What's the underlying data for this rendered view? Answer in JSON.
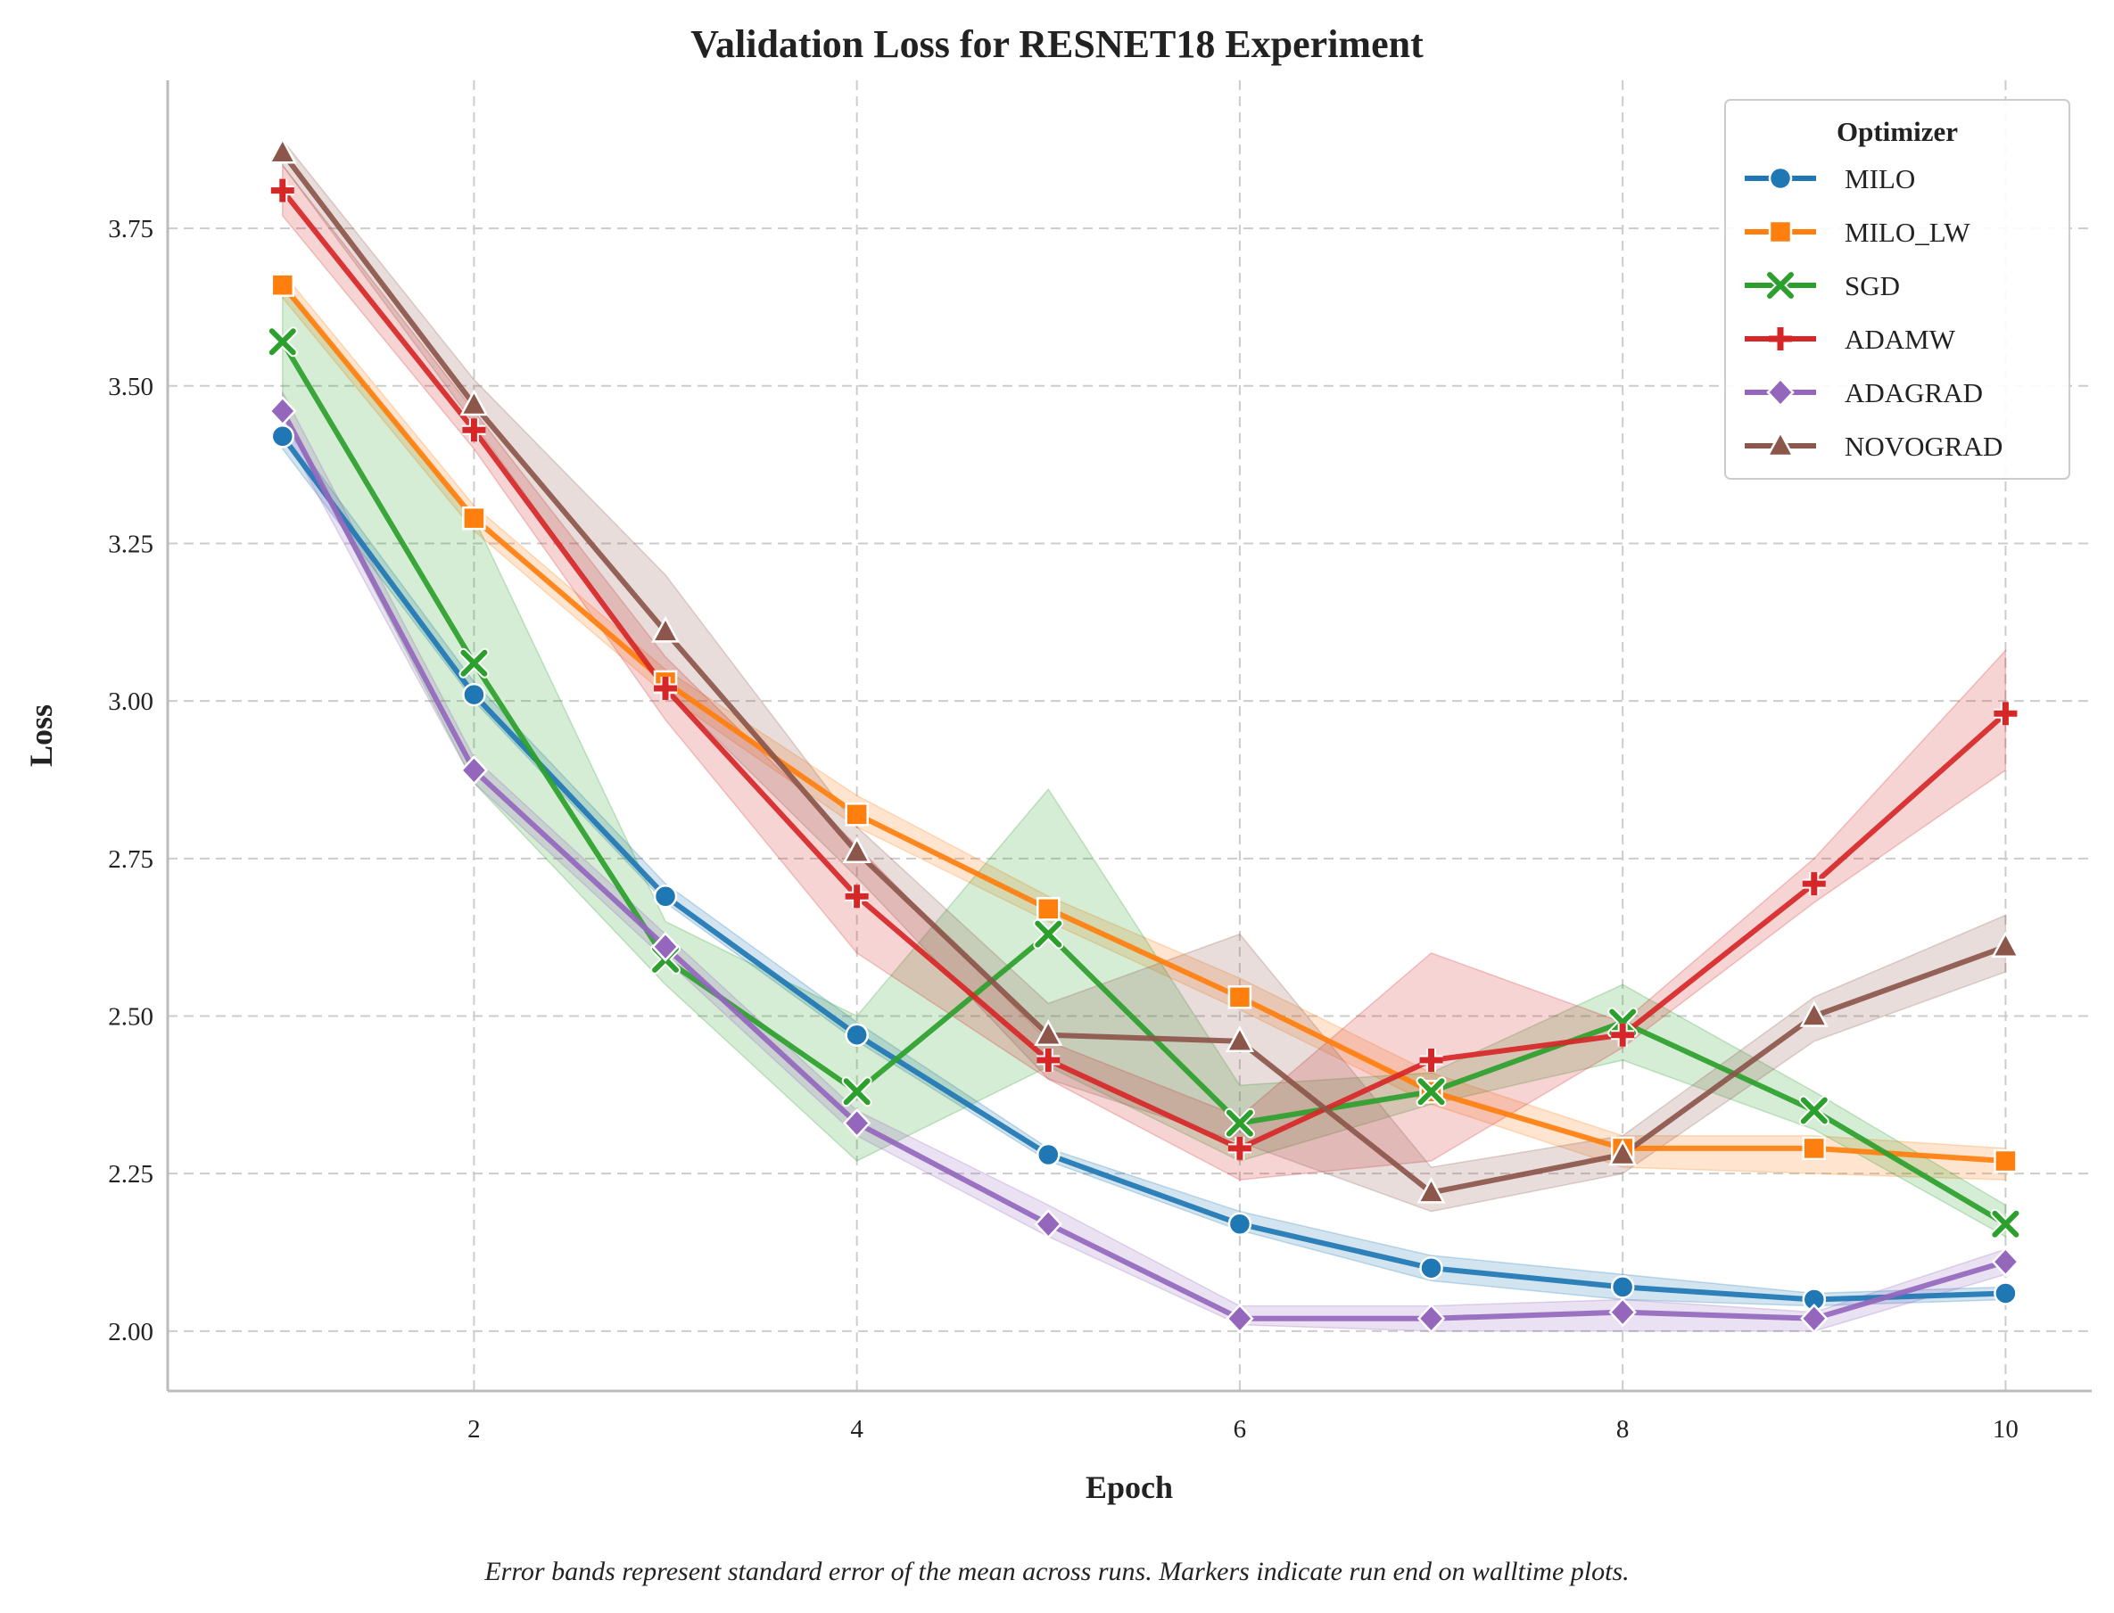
{
  "chart_data": {
    "type": "line",
    "title": "Validation Loss for RESNET18 Experiment",
    "xlabel": "Epoch",
    "ylabel": "Loss",
    "xlim": [
      0.4,
      10.45
    ],
    "ylim": [
      1.905,
      3.985
    ],
    "xticks": [
      2,
      4,
      6,
      8,
      10
    ],
    "xtick_labels": [
      "2",
      "4",
      "6",
      "8",
      "10"
    ],
    "yticks": [
      2.0,
      2.25,
      2.5,
      2.75,
      3.0,
      3.25,
      3.5,
      3.75
    ],
    "ytick_labels": [
      "2.00",
      "2.25",
      "2.50",
      "2.75",
      "3.00",
      "3.25",
      "3.50",
      "3.75"
    ],
    "grid": true,
    "legend": {
      "title": "Optimizer",
      "position": "top-right"
    },
    "caption": "Error bands represent standard error of the mean across runs. Markers indicate run end on walltime plots.",
    "x": [
      1,
      2,
      3,
      4,
      5,
      6,
      7,
      8,
      9,
      10
    ],
    "series": [
      {
        "name": "MILO",
        "color": "#1f77b4",
        "marker": "circle",
        "values": [
          3.42,
          3.01,
          2.69,
          2.47,
          2.28,
          2.17,
          2.1,
          2.07,
          2.05,
          2.06
        ],
        "lower": [
          3.4,
          3.0,
          2.68,
          2.46,
          2.27,
          2.16,
          2.08,
          2.05,
          2.04,
          2.05
        ],
        "upper": [
          3.44,
          3.03,
          2.71,
          2.49,
          2.29,
          2.19,
          2.12,
          2.09,
          2.06,
          2.07
        ]
      },
      {
        "name": "MILO_LW",
        "color": "#ff7f0e",
        "marker": "square",
        "values": [
          3.66,
          3.29,
          3.03,
          2.82,
          2.67,
          2.53,
          2.38,
          2.29,
          2.29,
          2.27
        ],
        "lower": [
          3.64,
          3.27,
          3.01,
          2.8,
          2.65,
          2.51,
          2.36,
          2.26,
          2.25,
          2.24
        ],
        "upper": [
          3.68,
          3.31,
          3.05,
          2.85,
          2.69,
          2.56,
          2.41,
          2.31,
          2.31,
          2.29
        ]
      },
      {
        "name": "SGD",
        "color": "#2ca02c",
        "marker": "x",
        "values": [
          3.57,
          3.06,
          2.59,
          2.38,
          2.63,
          2.33,
          2.38,
          2.49,
          2.35,
          2.17
        ],
        "lower": [
          3.46,
          2.87,
          2.55,
          2.27,
          2.42,
          2.27,
          2.36,
          2.43,
          2.32,
          2.15
        ],
        "upper": [
          3.66,
          3.29,
          2.65,
          2.5,
          2.86,
          2.39,
          2.41,
          2.55,
          2.38,
          2.2
        ]
      },
      {
        "name": "ADAMW",
        "color": "#d62728",
        "marker": "plus",
        "values": [
          3.81,
          3.43,
          3.02,
          2.69,
          2.43,
          2.29,
          2.43,
          2.47,
          2.71,
          2.98
        ],
        "lower": [
          3.77,
          3.4,
          2.97,
          2.6,
          2.4,
          2.24,
          2.27,
          2.45,
          2.68,
          2.89
        ],
        "upper": [
          3.85,
          3.46,
          3.07,
          2.77,
          2.46,
          2.34,
          2.6,
          2.49,
          2.75,
          3.08
        ]
      },
      {
        "name": "ADAGRAD",
        "color": "#9467bd",
        "marker": "diamond",
        "values": [
          3.46,
          2.89,
          2.61,
          2.33,
          2.17,
          2.02,
          2.02,
          2.03,
          2.02,
          2.11
        ],
        "lower": [
          3.43,
          2.87,
          2.59,
          2.31,
          2.15,
          2.01,
          2.0,
          2.0,
          2.0,
          2.09
        ],
        "upper": [
          3.49,
          2.91,
          2.63,
          2.35,
          2.2,
          2.04,
          2.04,
          2.05,
          2.03,
          2.13
        ]
      },
      {
        "name": "NOVOGRAD",
        "color": "#8c564b",
        "marker": "triangle",
        "values": [
          3.87,
          3.47,
          3.11,
          2.76,
          2.47,
          2.46,
          2.22,
          2.28,
          2.5,
          2.61
        ],
        "lower": [
          3.85,
          3.44,
          3.02,
          2.72,
          2.4,
          2.3,
          2.19,
          2.25,
          2.46,
          2.57
        ],
        "upper": [
          3.89,
          3.51,
          3.2,
          2.8,
          2.52,
          2.63,
          2.26,
          2.31,
          2.53,
          2.66
        ]
      }
    ]
  }
}
